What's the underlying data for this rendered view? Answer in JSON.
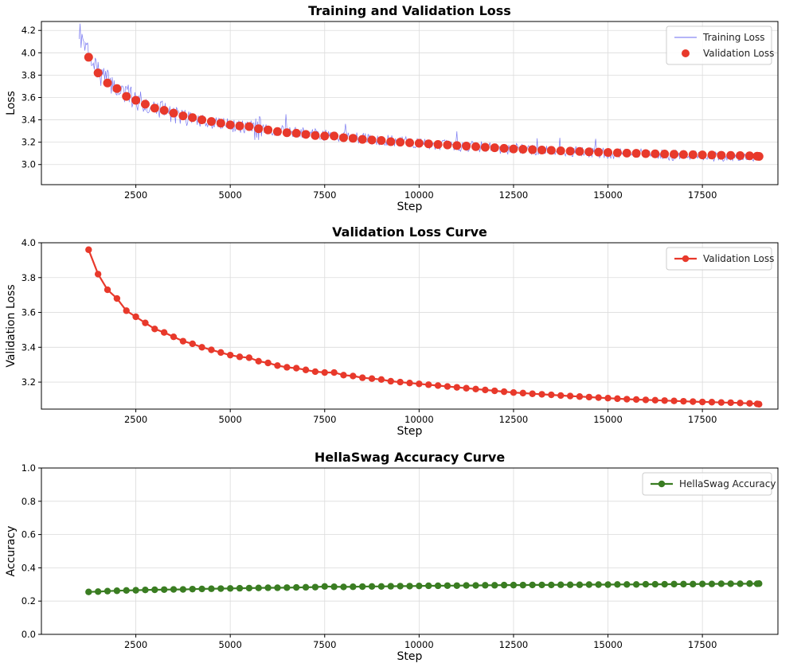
{
  "chart_data": [
    {
      "type": "line",
      "title": "Training and Validation Loss",
      "xlabel": "Step",
      "ylabel": "Loss",
      "xlim": [
        0,
        19500
      ],
      "ylim": [
        2.82,
        4.28
      ],
      "xticks": [
        2500,
        5000,
        7500,
        10000,
        12500,
        15000,
        17500
      ],
      "yticks": [
        3.0,
        3.2,
        3.4,
        3.6,
        3.8,
        4.0,
        4.2
      ],
      "grid": true,
      "legend_position": "top-right",
      "series": [
        {
          "name": "Training Loss",
          "style": "line",
          "color": "#6b6bf0",
          "x_range": [
            1000,
            19000
          ],
          "x_step": 25,
          "noise_seed": 7,
          "trend_points": [
            [
              1000,
              4.1
            ],
            [
              1300,
              3.95
            ],
            [
              1500,
              3.83
            ],
            [
              2000,
              3.68
            ],
            [
              2500,
              3.58
            ],
            [
              3000,
              3.51
            ],
            [
              3500,
              3.45
            ],
            [
              4000,
              3.41
            ],
            [
              4500,
              3.38
            ],
            [
              5000,
              3.35
            ],
            [
              6000,
              3.31
            ],
            [
              7000,
              3.28
            ],
            [
              8000,
              3.25
            ],
            [
              9000,
              3.22
            ],
            [
              10000,
              3.19
            ],
            [
              11000,
              3.17
            ],
            [
              12000,
              3.15
            ],
            [
              13000,
              3.13
            ],
            [
              14000,
              3.12
            ],
            [
              15000,
              3.1
            ],
            [
              16000,
              3.09
            ],
            [
              17000,
              3.08
            ],
            [
              18000,
              3.075
            ],
            [
              19000,
              3.07
            ]
          ]
        },
        {
          "name": "Validation Loss",
          "style": "scatter",
          "color": "#e8392b",
          "x": [
            1250,
            1500,
            1750,
            2000,
            2250,
            2500,
            2750,
            3000,
            3250,
            3500,
            3750,
            4000,
            4250,
            4500,
            4750,
            5000,
            5250,
            5500,
            5750,
            6000,
            6250,
            6500,
            6750,
            7000,
            7250,
            7500,
            7750,
            8000,
            8250,
            8500,
            8750,
            9000,
            9250,
            9500,
            9750,
            10000,
            10250,
            10500,
            10750,
            11000,
            11250,
            11500,
            11750,
            12000,
            12250,
            12500,
            12750,
            13000,
            13250,
            13500,
            13750,
            14000,
            14250,
            14500,
            14750,
            15000,
            15250,
            15500,
            15750,
            16000,
            16250,
            16500,
            16750,
            17000,
            17250,
            17500,
            17750,
            18000,
            18250,
            18500,
            18750,
            18950,
            19000
          ],
          "values": [
            3.96,
            3.82,
            3.73,
            3.68,
            3.61,
            3.575,
            3.54,
            3.505,
            3.485,
            3.46,
            3.435,
            3.42,
            3.4,
            3.385,
            3.37,
            3.355,
            3.345,
            3.34,
            3.32,
            3.31,
            3.295,
            3.285,
            3.28,
            3.27,
            3.26,
            3.255,
            3.255,
            3.24,
            3.235,
            3.225,
            3.22,
            3.215,
            3.205,
            3.2,
            3.195,
            3.19,
            3.185,
            3.18,
            3.175,
            3.17,
            3.165,
            3.16,
            3.155,
            3.15,
            3.145,
            3.14,
            3.137,
            3.133,
            3.13,
            3.127,
            3.123,
            3.12,
            3.117,
            3.114,
            3.111,
            3.108,
            3.105,
            3.102,
            3.1,
            3.098,
            3.096,
            3.094,
            3.092,
            3.09,
            3.088,
            3.086,
            3.085,
            3.083,
            3.082,
            3.08,
            3.078,
            3.075,
            3.073
          ]
        }
      ]
    },
    {
      "type": "line",
      "title": "Validation Loss Curve",
      "xlabel": "Step",
      "ylabel": "Validation Loss",
      "xlim": [
        0,
        19500
      ],
      "ylim": [
        3.045,
        4.0
      ],
      "xticks": [
        2500,
        5000,
        7500,
        10000,
        12500,
        15000,
        17500
      ],
      "yticks": [
        3.2,
        3.4,
        3.6,
        3.8,
        4.0
      ],
      "grid": true,
      "legend_position": "top-right",
      "series": [
        {
          "name": "Validation Loss",
          "style": "line-marker",
          "color": "#e8392b",
          "x": [
            1250,
            1500,
            1750,
            2000,
            2250,
            2500,
            2750,
            3000,
            3250,
            3500,
            3750,
            4000,
            4250,
            4500,
            4750,
            5000,
            5250,
            5500,
            5750,
            6000,
            6250,
            6500,
            6750,
            7000,
            7250,
            7500,
            7750,
            8000,
            8250,
            8500,
            8750,
            9000,
            9250,
            9500,
            9750,
            10000,
            10250,
            10500,
            10750,
            11000,
            11250,
            11500,
            11750,
            12000,
            12250,
            12500,
            12750,
            13000,
            13250,
            13500,
            13750,
            14000,
            14250,
            14500,
            14750,
            15000,
            15250,
            15500,
            15750,
            16000,
            16250,
            16500,
            16750,
            17000,
            17250,
            17500,
            17750,
            18000,
            18250,
            18500,
            18750,
            18950,
            19000
          ],
          "values": [
            3.96,
            3.82,
            3.73,
            3.68,
            3.61,
            3.575,
            3.54,
            3.505,
            3.485,
            3.46,
            3.435,
            3.42,
            3.4,
            3.385,
            3.37,
            3.355,
            3.345,
            3.34,
            3.32,
            3.31,
            3.295,
            3.285,
            3.28,
            3.27,
            3.26,
            3.255,
            3.255,
            3.24,
            3.235,
            3.225,
            3.22,
            3.215,
            3.205,
            3.2,
            3.195,
            3.19,
            3.185,
            3.18,
            3.175,
            3.17,
            3.165,
            3.16,
            3.155,
            3.15,
            3.145,
            3.14,
            3.137,
            3.133,
            3.13,
            3.127,
            3.123,
            3.12,
            3.117,
            3.114,
            3.111,
            3.108,
            3.105,
            3.102,
            3.1,
            3.098,
            3.096,
            3.094,
            3.092,
            3.09,
            3.088,
            3.086,
            3.085,
            3.083,
            3.082,
            3.08,
            3.078,
            3.075,
            3.073
          ]
        }
      ]
    },
    {
      "type": "line",
      "title": "HellaSwag Accuracy Curve",
      "xlabel": "Step",
      "ylabel": "Accuracy",
      "xlim": [
        0,
        19500
      ],
      "ylim": [
        0.0,
        1.0
      ],
      "xticks": [
        2500,
        5000,
        7500,
        10000,
        12500,
        15000,
        17500
      ],
      "yticks": [
        0.0,
        0.2,
        0.4,
        0.6,
        0.8,
        1.0
      ],
      "grid": true,
      "legend_position": "top-right",
      "series": [
        {
          "name": "HellaSwag Accuracy",
          "style": "line-marker",
          "color": "#3a7d22",
          "x": [
            1250,
            1500,
            1750,
            2000,
            2250,
            2500,
            2750,
            3000,
            3250,
            3500,
            3750,
            4000,
            4250,
            4500,
            4750,
            5000,
            5250,
            5500,
            5750,
            6000,
            6250,
            6500,
            6750,
            7000,
            7250,
            7500,
            7750,
            8000,
            8250,
            8500,
            8750,
            9000,
            9250,
            9500,
            9750,
            10000,
            10250,
            10500,
            10750,
            11000,
            11250,
            11500,
            11750,
            12000,
            12250,
            12500,
            12750,
            13000,
            13250,
            13500,
            13750,
            14000,
            14250,
            14500,
            14750,
            15000,
            15250,
            15500,
            15750,
            16000,
            16250,
            16500,
            16750,
            17000,
            17250,
            17500,
            17750,
            18000,
            18250,
            18500,
            18750,
            18950,
            19000
          ],
          "values": [
            0.255,
            0.257,
            0.26,
            0.262,
            0.264,
            0.265,
            0.267,
            0.268,
            0.269,
            0.27,
            0.27,
            0.272,
            0.273,
            0.274,
            0.275,
            0.276,
            0.277,
            0.278,
            0.279,
            0.28,
            0.28,
            0.281,
            0.282,
            0.283,
            0.284,
            0.288,
            0.286,
            0.285,
            0.286,
            0.287,
            0.288,
            0.288,
            0.289,
            0.29,
            0.29,
            0.291,
            0.292,
            0.292,
            0.293,
            0.293,
            0.294,
            0.294,
            0.295,
            0.295,
            0.296,
            0.296,
            0.296,
            0.297,
            0.297,
            0.297,
            0.298,
            0.298,
            0.298,
            0.299,
            0.299,
            0.299,
            0.3,
            0.3,
            0.3,
            0.301,
            0.301,
            0.301,
            0.302,
            0.302,
            0.302,
            0.303,
            0.303,
            0.304,
            0.304,
            0.304,
            0.305,
            0.304,
            0.305
          ]
        }
      ]
    }
  ]
}
